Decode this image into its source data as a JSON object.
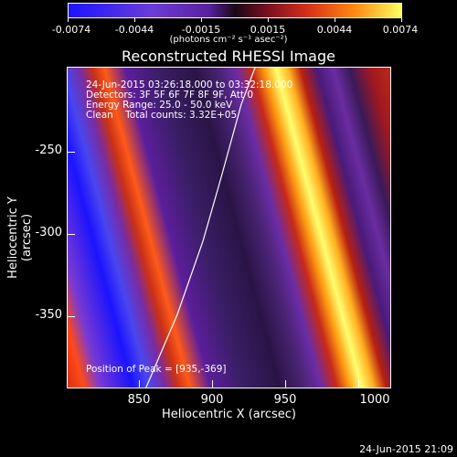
{
  "colorbar": {
    "ticks": [
      "-0.0074",
      "-0.0044",
      "-0.0015",
      "0.0015",
      "0.0044",
      "0.0074"
    ],
    "units": "(photons cm⁻² s⁻¹ asec⁻²)"
  },
  "title": "Reconstructed RHESSI Image",
  "info": {
    "line1": "24-Jun-2015 03:26:18.000 to 03:32:18.000",
    "line2": "Detectors: 3F 5F 6F 7F 8F 9F, Att 0",
    "line3": "Energy Range: 25.0 - 50.0 keV",
    "line4": "Clean    Total counts: 3.32E+05",
    "peak": "Position of Peak = [935,-369]"
  },
  "axes": {
    "xlabel": "Heliocentric X (arcsec)",
    "ylabel": "Heliocentric Y (arcsec)",
    "xticks": [
      "850",
      "900",
      "950",
      "1000"
    ],
    "yticks": [
      "-250",
      "-300",
      "-350"
    ]
  },
  "timestamp": "24-Jun-2015 21:09"
}
